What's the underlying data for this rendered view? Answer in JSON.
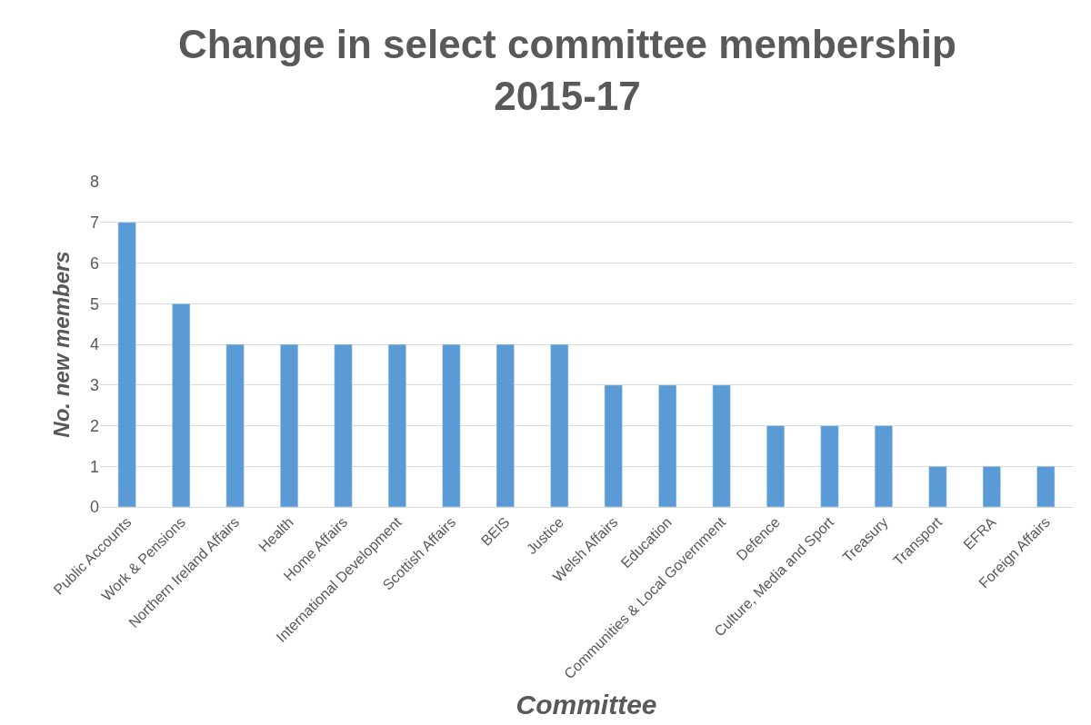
{
  "chart_data": {
    "type": "bar",
    "title": "Change in select committee membership 2015-17",
    "xlabel": "Committee",
    "ylabel": "No. new members",
    "categories": [
      "Public Accounts",
      "Work & Pensions",
      "Northern Ireland Affairs",
      "Health",
      "Home Affairs",
      "International Development",
      "Scottish Affairs",
      "BEIS",
      "Justice",
      "Welsh Affairs",
      "Education",
      "Communities & Local Government",
      "Defence",
      "Culture, Media and Sport",
      "Treasury",
      "Transport",
      "EFRA",
      "Foreign Affairs"
    ],
    "values": [
      7,
      5,
      4,
      4,
      4,
      4,
      4,
      4,
      4,
      3,
      3,
      3,
      2,
      2,
      2,
      1,
      1,
      1
    ],
    "color": "#5b9bd5",
    "ylim": [
      0,
      8
    ],
    "yticks": [
      0,
      1,
      2,
      3,
      4,
      5,
      6,
      7,
      8
    ],
    "grid": "y"
  }
}
